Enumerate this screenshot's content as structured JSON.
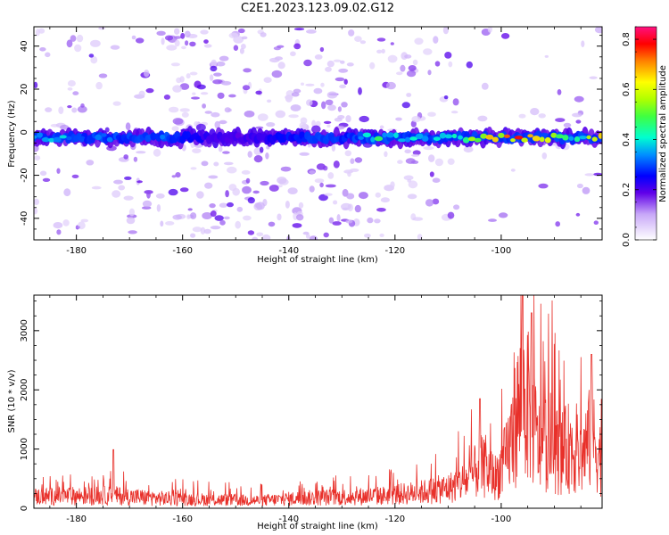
{
  "title": "C2E1.2023.123.09.02.G12",
  "chart_data": [
    {
      "type": "heatmap",
      "xlabel": "Height of straight line (km)",
      "ylabel": "Frequency (Hz)",
      "xlim": [
        -188,
        -81
      ],
      "ylim": [
        -50,
        49
      ],
      "xticks": [
        -180,
        -160,
        -140,
        -120,
        -100
      ],
      "yticks": [
        -40,
        -20,
        0,
        20,
        40
      ],
      "grid": false,
      "colorbar": {
        "label": "Normalized spectral amplitude",
        "range": [
          0.0,
          0.85
        ],
        "ticks": [
          "0.0",
          "0.2",
          "0.4",
          "0.6",
          "0.8"
        ]
      },
      "band": {
        "center_freq": -2.5,
        "half_width": 5,
        "amplitude_profile": [
          {
            "x": -188,
            "v": 0.38
          },
          {
            "x": -182,
            "v": 0.42
          },
          {
            "x": -178,
            "v": 0.3
          },
          {
            "x": -175,
            "v": 0.42
          },
          {
            "x": -172,
            "v": 0.3
          },
          {
            "x": -166,
            "v": 0.35
          },
          {
            "x": -160,
            "v": 0.3
          },
          {
            "x": -154,
            "v": 0.22
          },
          {
            "x": -148,
            "v": 0.22
          },
          {
            "x": -140,
            "v": 0.28
          },
          {
            "x": -134,
            "v": 0.32
          },
          {
            "x": -128,
            "v": 0.3
          },
          {
            "x": -125,
            "v": 0.5
          },
          {
            "x": -120,
            "v": 0.5
          },
          {
            "x": -114,
            "v": 0.42
          },
          {
            "x": -108,
            "v": 0.55
          },
          {
            "x": -104,
            "v": 0.68
          },
          {
            "x": -100,
            "v": 0.75
          },
          {
            "x": -96,
            "v": 0.8
          },
          {
            "x": -92,
            "v": 0.65
          },
          {
            "x": -88,
            "v": 0.5
          },
          {
            "x": -84,
            "v": 0.55
          },
          {
            "x": -82,
            "v": 0.7
          }
        ]
      }
    },
    {
      "type": "line",
      "xlabel": "Height of straight line (km)",
      "ylabel": "SNR (10 * v/v)",
      "xlim": [
        -188,
        -81
      ],
      "ylim": [
        0,
        3600
      ],
      "xticks": [
        -180,
        -160,
        -140,
        -120,
        -100
      ],
      "yticks": [
        0,
        1000,
        2000,
        3000
      ],
      "grid": false,
      "color": "#e8302a",
      "envelope": [
        {
          "x": -188,
          "v": 300
        },
        {
          "x": -180,
          "v": 320
        },
        {
          "x": -173,
          "v": 330
        },
        {
          "x": -165,
          "v": 260
        },
        {
          "x": -155,
          "v": 220
        },
        {
          "x": -145,
          "v": 200
        },
        {
          "x": -138,
          "v": 260
        },
        {
          "x": -130,
          "v": 290
        },
        {
          "x": -122,
          "v": 330
        },
        {
          "x": -115,
          "v": 420
        },
        {
          "x": -110,
          "v": 520
        },
        {
          "x": -106,
          "v": 750
        },
        {
          "x": -104,
          "v": 1100
        },
        {
          "x": -101,
          "v": 800
        },
        {
          "x": -99,
          "v": 1300
        },
        {
          "x": -97,
          "v": 2400
        },
        {
          "x": -96,
          "v": 2900
        },
        {
          "x": -94.5,
          "v": 2500
        },
        {
          "x": -93,
          "v": 1600
        },
        {
          "x": -91,
          "v": 1800
        },
        {
          "x": -89,
          "v": 1400
        },
        {
          "x": -87,
          "v": 1600
        },
        {
          "x": -85,
          "v": 1300
        },
        {
          "x": -83,
          "v": 1900
        },
        {
          "x": -81,
          "v": 1200
        }
      ],
      "peaks": [
        {
          "x": -173,
          "v": 990
        },
        {
          "x": -104,
          "v": 1850
        },
        {
          "x": -96,
          "v": 3600
        },
        {
          "x": -94.3,
          "v": 3300
        },
        {
          "x": -83,
          "v": 2600
        }
      ]
    }
  ]
}
